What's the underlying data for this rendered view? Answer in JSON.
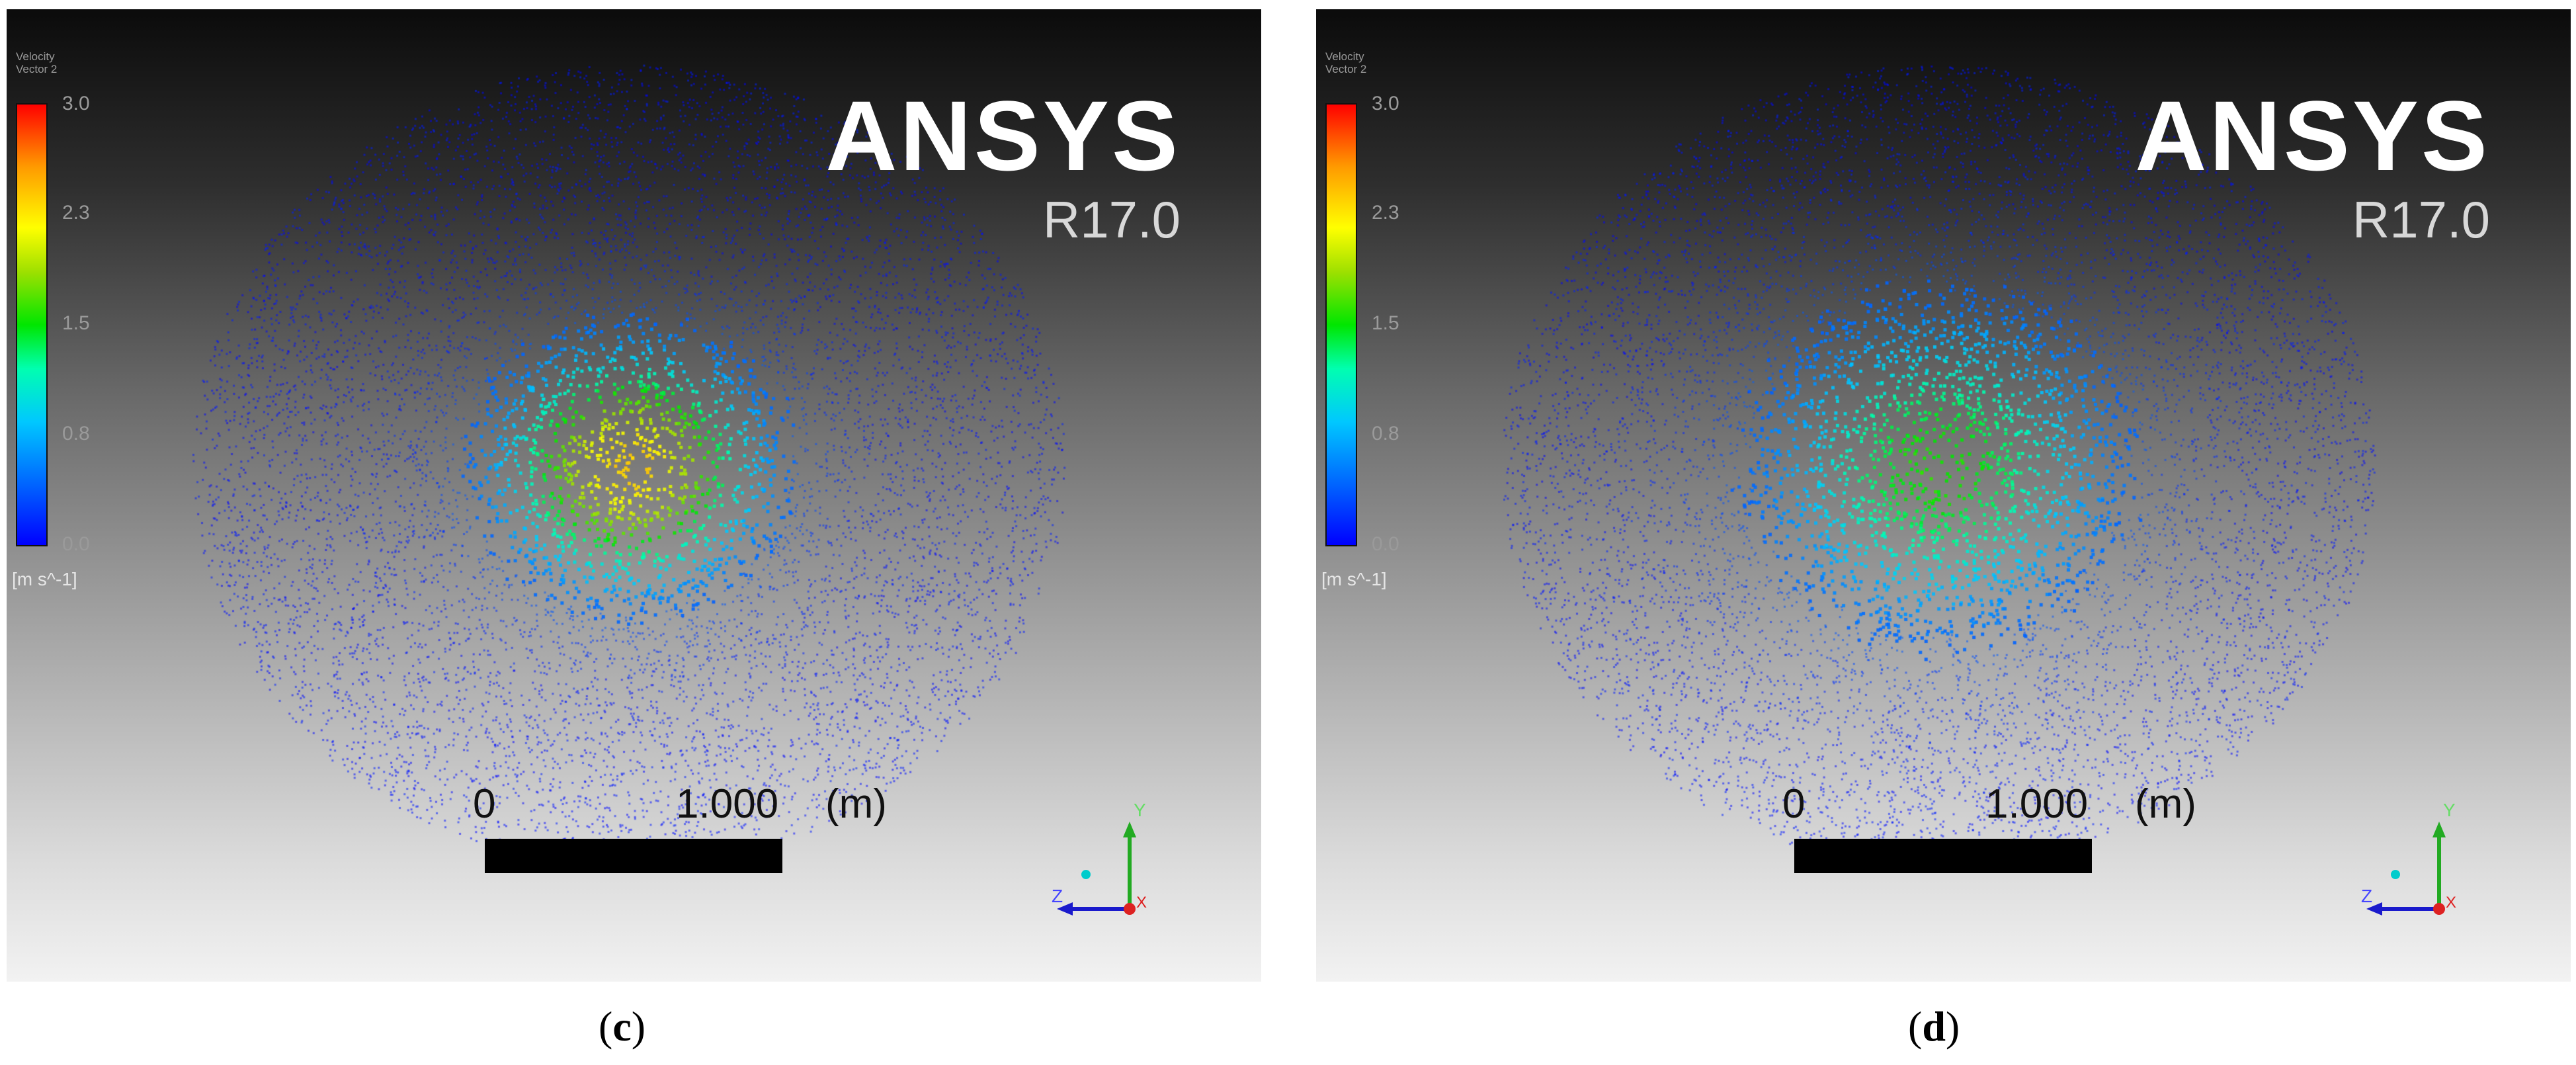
{
  "panels": [
    {
      "id": "c",
      "legend": {
        "title_lines": [
          "Velocity",
          "Vector 2"
        ],
        "ticks": [
          "3.0",
          "2.3",
          "1.5",
          "0.8",
          "0.0"
        ],
        "unit": "[m s^-1]"
      },
      "brand": "ANSYS",
      "version": "R17.0",
      "scale": {
        "start": "0",
        "length": "1.000",
        "unit": "(m)"
      },
      "triad": {
        "x": "X",
        "y": "Y",
        "z": "Z"
      },
      "caption": {
        "open": "(",
        "letter": "c",
        "close": ")"
      },
      "field": {
        "peak": 2.3,
        "spread": 0.45
      }
    },
    {
      "id": "d",
      "legend": {
        "title_lines": [
          "Velocity",
          "Vector 2"
        ],
        "ticks": [
          "3.0",
          "2.3",
          "1.5",
          "0.8",
          "0.0"
        ],
        "unit": "[m s^-1]"
      },
      "brand": "ANSYS",
      "version": "R17.0",
      "scale": {
        "start": "0",
        "length": "1.000",
        "unit": "(m)"
      },
      "triad": {
        "x": "X",
        "y": "Y",
        "z": "Z"
      },
      "caption": {
        "open": "(",
        "letter": "d",
        "close": ")"
      },
      "field": {
        "peak": 1.5,
        "spread": 0.6
      }
    }
  ],
  "colors": {
    "low": "#0000ff",
    "high": "#ff0000",
    "background_top": "#0b0b0b",
    "background_bottom": "#f2f2f2"
  }
}
